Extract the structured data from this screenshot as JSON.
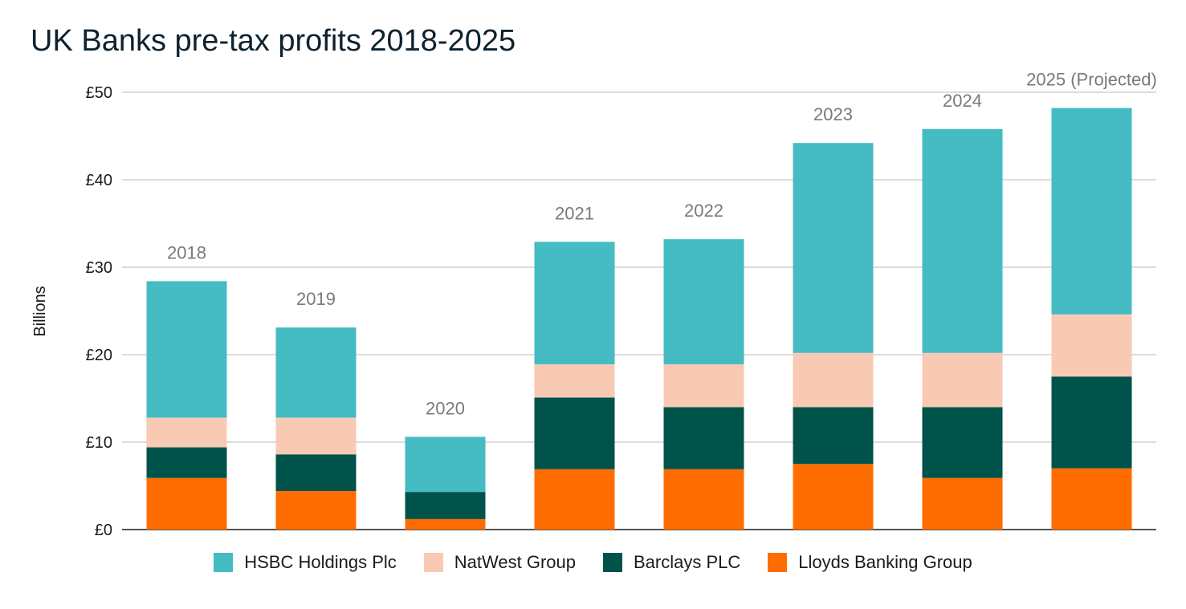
{
  "chart_data": {
    "type": "bar",
    "stacked": true,
    "title": "UK Banks pre-tax profits 2018-2025",
    "ylabel": "Billions",
    "ylim": [
      0,
      50
    ],
    "yticks": [
      0,
      10,
      20,
      30,
      40,
      50
    ],
    "ytick_labels": [
      "£0",
      "£10",
      "£20",
      "£30",
      "£40",
      "£50"
    ],
    "grid": true,
    "legend_position": "bottom",
    "categories": [
      "2018",
      "2019",
      "2020",
      "2021",
      "2022",
      "2023",
      "2024",
      "2025 (Projected)"
    ],
    "series": [
      {
        "name": "Lloyds Banking Group",
        "color": "#ff6d00",
        "values": [
          5.9,
          4.4,
          1.2,
          6.9,
          6.9,
          7.5,
          5.9,
          7.0
        ]
      },
      {
        "name": "Barclays PLC",
        "color": "#00534b",
        "values": [
          3.5,
          4.2,
          3.1,
          8.2,
          7.1,
          6.5,
          8.1,
          10.5
        ]
      },
      {
        "name": "NatWest Group",
        "color": "#f9cab3",
        "values": [
          3.4,
          4.2,
          0.0,
          3.8,
          4.9,
          6.2,
          6.2,
          7.1
        ]
      },
      {
        "name": "HSBC Holdings Plc",
        "color": "#45bbc4",
        "values": [
          15.6,
          10.3,
          6.3,
          14.0,
          14.3,
          24.0,
          25.6,
          23.6
        ]
      }
    ],
    "legend_order": [
      "HSBC Holdings Plc",
      "NatWest Group",
      "Barclays PLC",
      "Lloyds Banking Group"
    ],
    "grid_color": "#c8c8c8",
    "axis_color": "#1a1a1a",
    "category_label_color": "#7a7a7a"
  }
}
